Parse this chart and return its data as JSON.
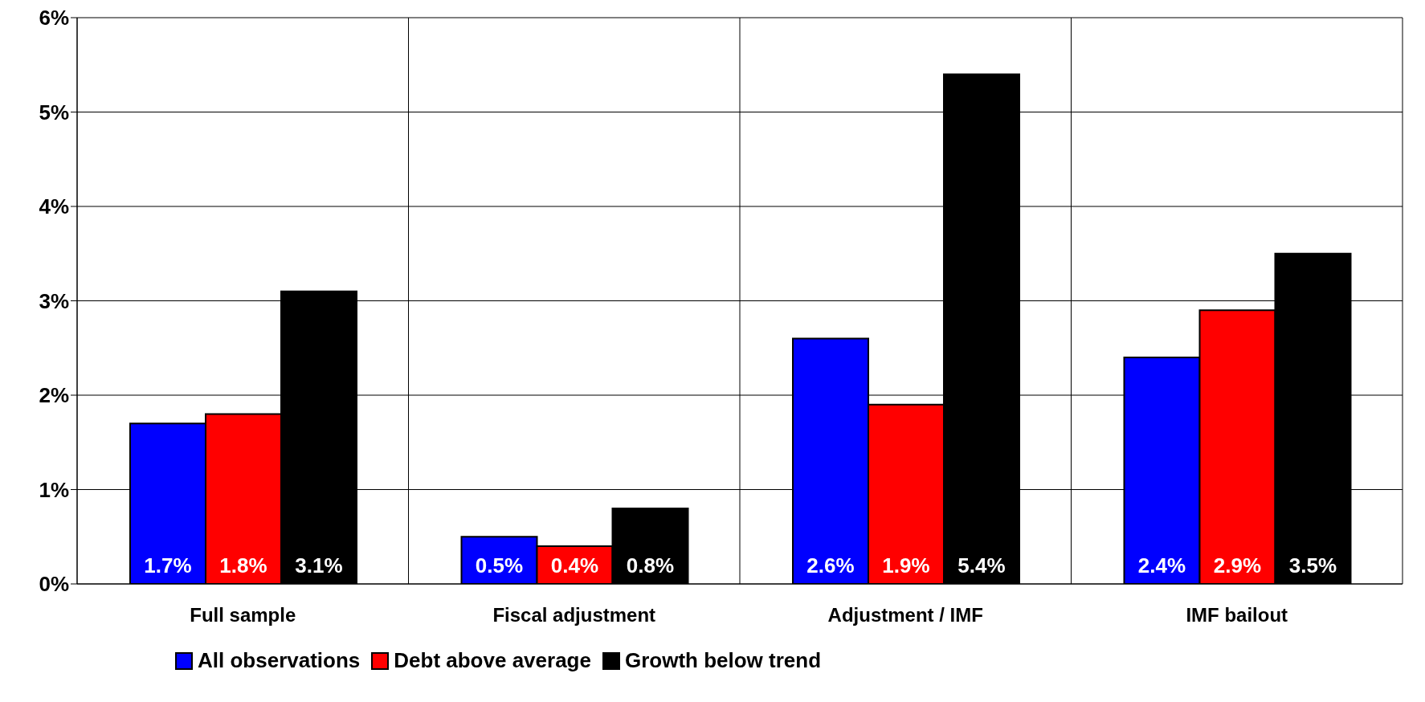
{
  "chart_data": {
    "type": "bar",
    "categories": [
      "Full sample",
      "Fiscal adjustment",
      "Adjustment / IMF",
      "IMF bailout"
    ],
    "series": [
      {
        "name": "All observations",
        "color": "#0000ff",
        "values": [
          1.7,
          0.5,
          2.6,
          2.4
        ],
        "value_labels": [
          "1.7%",
          "0.5%",
          "2.6%",
          "2.4%"
        ]
      },
      {
        "name": "Debt above average",
        "color": "#ff0000",
        "values": [
          1.8,
          0.4,
          1.9,
          2.9
        ],
        "value_labels": [
          "1.8%",
          "0.4%",
          "1.9%",
          "2.9%"
        ]
      },
      {
        "name": "Growth below trend",
        "color": "#000000",
        "values": [
          3.1,
          0.8,
          5.4,
          3.5
        ],
        "value_labels": [
          "3.1%",
          "0.8%",
          "5.4%",
          "3.5%"
        ]
      }
    ],
    "ylim": [
      0,
      6
    ],
    "yticks": [
      {
        "value": 0,
        "label": "0%"
      },
      {
        "value": 1,
        "label": "1%"
      },
      {
        "value": 2,
        "label": "2%"
      },
      {
        "value": 3,
        "label": "3%"
      },
      {
        "value": 4,
        "label": "4%"
      },
      {
        "value": 5,
        "label": "5%"
      },
      {
        "value": 6,
        "label": "6%"
      }
    ],
    "grid": true,
    "legend": "bottom left"
  }
}
